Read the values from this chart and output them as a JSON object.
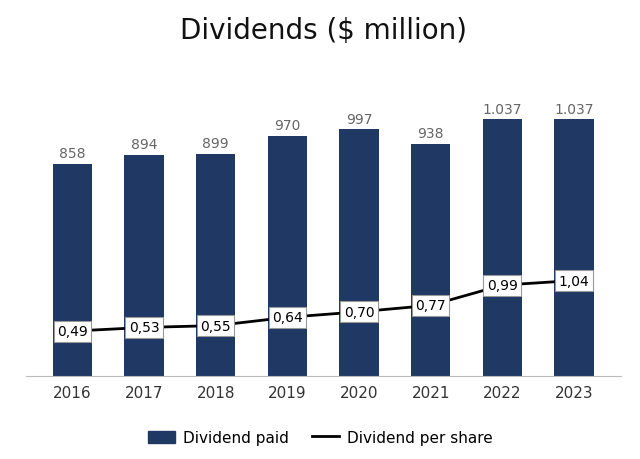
{
  "title": "Dividends ($ million)",
  "years": [
    2016,
    2017,
    2018,
    2019,
    2020,
    2021,
    2022,
    2023
  ],
  "dividends_paid": [
    858,
    894,
    899,
    970,
    997,
    938,
    1037,
    1037
  ],
  "dividends_per_share": [
    0.49,
    0.53,
    0.55,
    0.64,
    0.7,
    0.77,
    0.99,
    1.04
  ],
  "dividends_per_share_labels": [
    "0,49",
    "0,53",
    "0,55",
    "0,64",
    "0,70",
    "0,77",
    "0,99",
    "1,04"
  ],
  "dividends_paid_labels": [
    "858",
    "894",
    "899",
    "970",
    "997",
    "938",
    "1.037",
    "1.037"
  ],
  "bar_color": "#1F3864",
  "line_color": "#000000",
  "background_color": "#ffffff",
  "title_fontsize": 20,
  "bar_label_fontsize": 10,
  "line_label_fontsize": 10,
  "tick_fontsize": 11,
  "legend_fontsize": 11,
  "bar_ylim": [
    0,
    1300
  ],
  "line_ylim_max": 3.5,
  "bar_width": 0.55
}
